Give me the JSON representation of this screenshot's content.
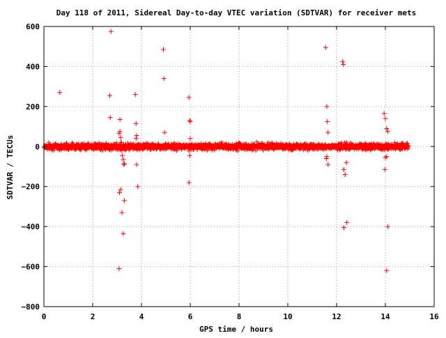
{
  "chart_data": {
    "type": "scatter",
    "title": "Day 118 of 2011, Sidereal Day-to-day VTEC variation (SDTVAR) for receiver mets",
    "xlabel": "GPS time / hours",
    "ylabel": "SDTVAR / TECUs",
    "xlim": [
      0,
      16
    ],
    "ylim": [
      -800,
      600
    ],
    "xticks": [
      0,
      2,
      4,
      6,
      8,
      10,
      12,
      14,
      16
    ],
    "xtick_labels": [
      "0",
      "2",
      "4",
      "6",
      "8",
      "10",
      "12",
      "14",
      "16"
    ],
    "yticks": [
      -800,
      -600,
      -400,
      -200,
      0,
      200,
      400,
      600
    ],
    "ytick_labels": [
      "−800",
      "−600",
      "−400",
      "−200",
      "0",
      "200",
      "400",
      "600"
    ],
    "grid": true,
    "marker": "+",
    "color": "#ff0000",
    "dense_band": {
      "x_start": 0,
      "x_end": 14.95,
      "y_min": -25,
      "y_max": 25,
      "description": "continuous dense cluster of points near zero"
    },
    "series": [
      {
        "x": [
          0.65,
          2.75,
          2.7,
          2.72,
          3.08,
          3.12,
          3.15,
          3.18,
          3.2,
          3.22,
          3.25,
          3.28,
          3.3,
          3.12,
          3.15,
          3.1,
          3.08,
          3.2,
          3.25,
          3.3,
          3.75,
          3.78,
          3.8,
          3.8,
          3.85,
          3.78,
          4.9,
          4.92,
          4.95,
          5.95,
          5.98,
          6.0,
          6.0,
          5.98,
          5.95,
          11.55,
          11.6,
          11.62,
          11.65,
          11.6,
          11.58,
          11.65,
          12.25,
          12.28,
          12.3,
          12.35,
          12.4,
          12.42,
          12.3,
          13.95,
          14.0,
          14.05,
          14.1,
          14.05,
          14.0,
          13.98,
          14.1,
          14.05
        ],
        "y": [
          270,
          575,
          255,
          145,
          65,
          75,
          45,
          20,
          -20,
          -45,
          -65,
          -90,
          -85,
          135,
          -215,
          -230,
          -610,
          -330,
          -435,
          -270,
          260,
          115,
          55,
          -90,
          -200,
          40,
          485,
          340,
          70,
          245,
          130,
          125,
          40,
          -45,
          -180,
          495,
          200,
          125,
          70,
          -50,
          -60,
          -90,
          425,
          410,
          -115,
          -140,
          -80,
          -380,
          -405,
          165,
          140,
          90,
          75,
          -50,
          -55,
          -115,
          -400,
          -620
        ]
      }
    ]
  }
}
